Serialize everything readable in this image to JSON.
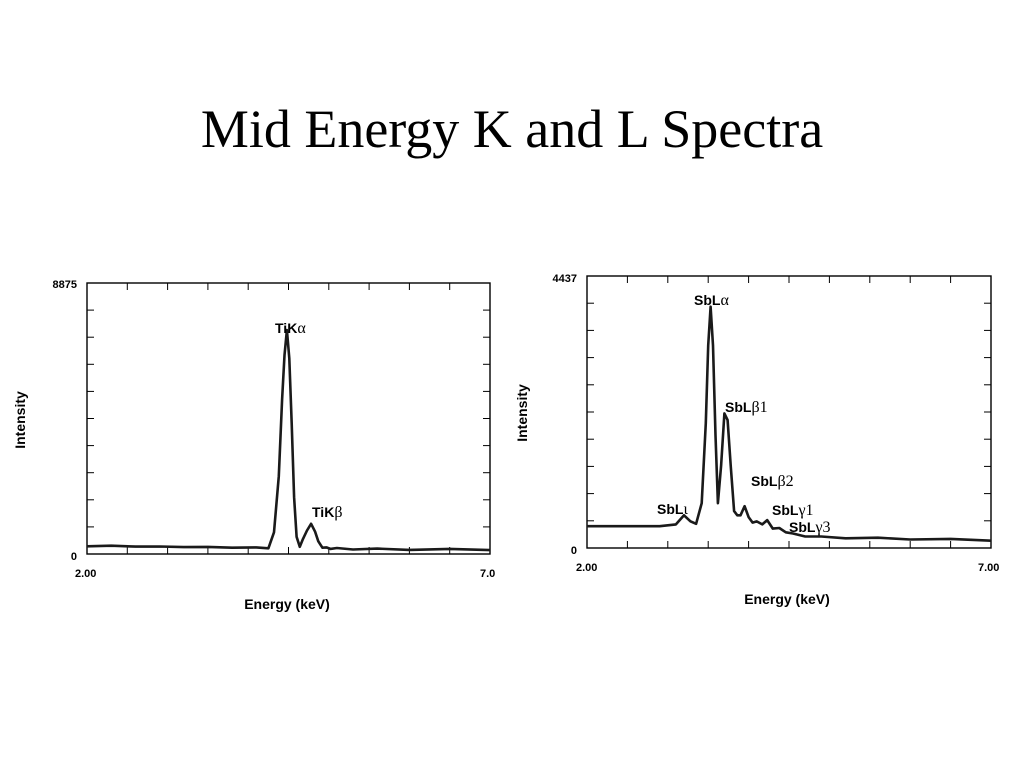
{
  "slide": {
    "title": "Mid Energy K and L Spectra"
  },
  "chart_data": [
    {
      "type": "line",
      "ylabel": "Intensity",
      "xlabel": "Energy (keV)",
      "xlim": [
        2.0,
        7.0
      ],
      "ylim": [
        0,
        8875
      ],
      "x_tick_labels": [
        "2.00",
        "7.0"
      ],
      "y_tick_labels": [
        "0",
        "8875"
      ],
      "grid": false,
      "series": [
        {
          "x": [
            2.0,
            2.3,
            2.6,
            2.9,
            3.2,
            3.5,
            3.8,
            4.1,
            4.25,
            4.32,
            4.38,
            4.42,
            4.45,
            4.48,
            4.51,
            4.54,
            4.57,
            4.6,
            4.64,
            4.68,
            4.73,
            4.78,
            4.83,
            4.87,
            4.92,
            4.97,
            5.02,
            5.1,
            5.3,
            5.6,
            6.0,
            6.5,
            7.0
          ],
          "y": [
            175,
            155,
            165,
            130,
            150,
            115,
            130,
            100,
            110,
            600,
            2500,
            5000,
            6500,
            7300,
            6400,
            4200,
            1800,
            450,
            160,
            380,
            700,
            880,
            660,
            300,
            130,
            100,
            90,
            80,
            70,
            60,
            55,
            50,
            50
          ]
        }
      ],
      "annotations": [
        {
          "base": "TiK",
          "greek": "α",
          "x": 4.5,
          "y": 7300
        },
        {
          "base": "TiK",
          "greek": "β",
          "x": 4.82,
          "y": 880
        }
      ]
    },
    {
      "type": "line",
      "ylabel": "Intensity",
      "xlabel": "Energy (keV)",
      "xlim": [
        2.0,
        7.0
      ],
      "ylim": [
        0,
        4437
      ],
      "x_tick_labels": [
        "2.00",
        "7.00"
      ],
      "y_tick_labels": [
        "0",
        "4437"
      ],
      "grid": false,
      "series": [
        {
          "x": [
            2.0,
            2.3,
            2.6,
            2.9,
            3.1,
            3.2,
            3.28,
            3.35,
            3.42,
            3.47,
            3.5,
            3.53,
            3.56,
            3.59,
            3.62,
            3.66,
            3.7,
            3.74,
            3.78,
            3.82,
            3.86,
            3.9,
            3.95,
            4.0,
            4.05,
            4.1,
            4.17,
            4.23,
            4.3,
            4.38,
            4.46,
            4.55,
            4.7,
            4.9,
            5.2,
            5.6,
            6.0,
            6.5,
            7.0
          ],
          "y": [
            320,
            300,
            320,
            300,
            350,
            480,
            400,
            340,
            700,
            2000,
            3300,
            3920,
            3300,
            1800,
            700,
            1300,
            2180,
            2050,
            1300,
            550,
            500,
            480,
            650,
            450,
            380,
            380,
            350,
            400,
            280,
            270,
            220,
            180,
            150,
            130,
            120,
            110,
            100,
            90,
            80
          ]
        }
      ],
      "annotations": [
        {
          "base": "SbL",
          "greek": "ι",
          "x": 3.2,
          "y": 480
        },
        {
          "base": "SbL",
          "greek": "α",
          "x": 3.53,
          "y": 3920
        },
        {
          "base": "SbL",
          "greek": "β1",
          "x": 3.74,
          "y": 2180
        },
        {
          "base": "SbL",
          "greek": "β2",
          "x": 3.95,
          "y": 650
        },
        {
          "base": "SbL",
          "greek": "γ1",
          "x": 4.2,
          "y": 400
        },
        {
          "base": "SbL",
          "greek": "γ3",
          "x": 4.38,
          "y": 270
        }
      ]
    }
  ]
}
